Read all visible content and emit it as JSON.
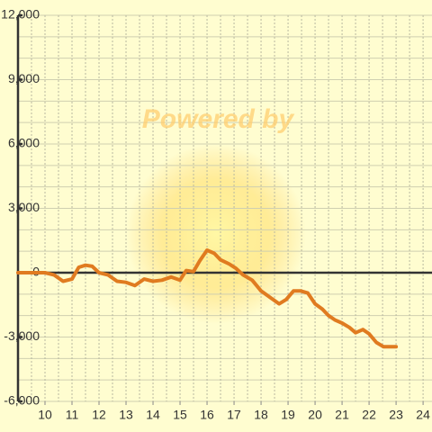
{
  "chart_data": {
    "type": "line",
    "annotation": "Powered by",
    "x": [
      9,
      10,
      10.33,
      10.67,
      11,
      11.25,
      11.5,
      11.75,
      12,
      12.33,
      12.67,
      13,
      13.33,
      13.67,
      14,
      14.33,
      14.67,
      15,
      15.23,
      15.5,
      15.73,
      16,
      16.27,
      16.5,
      16.83,
      17.07,
      17.33,
      17.67,
      18,
      18.33,
      18.67,
      18.93,
      19.2,
      19.47,
      19.73,
      20,
      20.27,
      20.5,
      20.73,
      21,
      21.27,
      21.5,
      21.77,
      22,
      22.27,
      22.53,
      23
    ],
    "values": [
      0,
      0,
      -100,
      -400,
      -300,
      250,
      350,
      300,
      0,
      -100,
      -400,
      -450,
      -600,
      -300,
      -400,
      -350,
      -200,
      -350,
      100,
      50,
      550,
      1050,
      900,
      600,
      400,
      200,
      -100,
      -350,
      -850,
      -1150,
      -1450,
      -1250,
      -850,
      -850,
      -950,
      -1450,
      -1700,
      -2000,
      -2200,
      -2350,
      -2550,
      -2800,
      -2650,
      -2850,
      -3250,
      -3450,
      -3450
    ],
    "color": "#e07b20",
    "xlim": [
      9,
      24.33
    ],
    "xticks": [
      10,
      11,
      12,
      13,
      14,
      15,
      16,
      17,
      18,
      19,
      20,
      21,
      22,
      23,
      24
    ],
    "xgrid": [
      9.5,
      10,
      10.5,
      11,
      11.5,
      12,
      12.5,
      13,
      13.5,
      14,
      14.5,
      15,
      15.5,
      16,
      16.5,
      17,
      17.5,
      18,
      18.5,
      19,
      19.5,
      20,
      20.5,
      21,
      21.5,
      22,
      22.5,
      23,
      23.5,
      24
    ],
    "ylim": [
      -6000,
      12000
    ],
    "yticks": [
      {
        "value": -6000,
        "label": "-6,000"
      },
      {
        "value": -3000,
        "label": "-3,000"
      },
      0,
      {
        "value": 3000,
        "label": "3,000"
      },
      {
        "value": 6000,
        "label": "6,000"
      },
      {
        "value": 9000,
        "label": "9,000"
      },
      {
        "value": 12000,
        "label": "12,000"
      }
    ],
    "ygrid": [
      -6000,
      -5000,
      -4000,
      -3000,
      -2000,
      -1000,
      1000,
      2000,
      3000,
      4000,
      5000,
      6000,
      7000,
      8000,
      9000,
      10000,
      11000,
      12000
    ],
    "grid": true
  }
}
